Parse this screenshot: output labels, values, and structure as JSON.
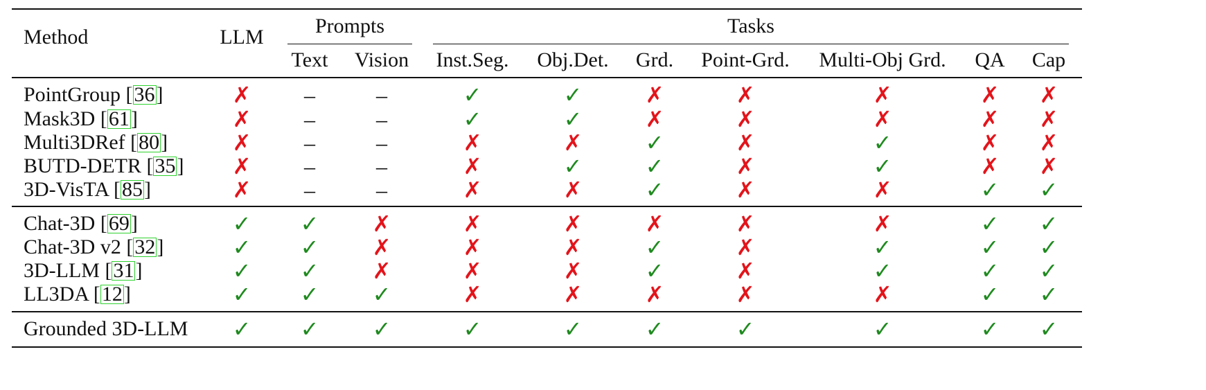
{
  "table": {
    "headers": {
      "method": "Method",
      "llm": "LLM",
      "prompts": "Prompts",
      "tasks": "Tasks",
      "prompt_cols": [
        "Text",
        "Vision"
      ],
      "task_cols": [
        "Inst.Seg.",
        "Obj.Det.",
        "Grd.",
        "Point-Grd.",
        "Multi-Obj Grd.",
        "QA",
        "Cap"
      ]
    },
    "marks": {
      "check": "✓",
      "cross": "✗",
      "dash": "–"
    },
    "groups": [
      [
        {
          "name": "PointGroup [",
          "cite": "36",
          "close": "]",
          "values": [
            "cross",
            "dash",
            "dash",
            "check",
            "check",
            "cross",
            "cross",
            "cross",
            "cross",
            "cross"
          ]
        },
        {
          "name": "Mask3D [",
          "cite": "61",
          "close": "]",
          "values": [
            "cross",
            "dash",
            "dash",
            "check",
            "check",
            "cross",
            "cross",
            "cross",
            "cross",
            "cross"
          ]
        },
        {
          "name": "Multi3DRef [",
          "cite": "80",
          "close": "]",
          "values": [
            "cross",
            "dash",
            "dash",
            "cross",
            "cross",
            "check",
            "cross",
            "check",
            "cross",
            "cross"
          ]
        },
        {
          "name": "BUTD-DETR [",
          "cite": "35",
          "close": "]",
          "values": [
            "cross",
            "dash",
            "dash",
            "cross",
            "check",
            "check",
            "cross",
            "check",
            "cross",
            "cross"
          ]
        },
        {
          "name": "3D-VisTA [",
          "cite": "85",
          "close": "]",
          "values": [
            "cross",
            "dash",
            "dash",
            "cross",
            "cross",
            "check",
            "cross",
            "cross",
            "check",
            "check"
          ]
        }
      ],
      [
        {
          "name": "Chat-3D [",
          "cite": "69",
          "close": "]",
          "values": [
            "check",
            "check",
            "cross",
            "cross",
            "cross",
            "cross",
            "cross",
            "cross",
            "check",
            "check"
          ]
        },
        {
          "name": "Chat-3D v2 [",
          "cite": "32",
          "close": "]",
          "values": [
            "check",
            "check",
            "cross",
            "cross",
            "cross",
            "check",
            "cross",
            "check",
            "check",
            "check"
          ]
        },
        {
          "name": "3D-LLM [",
          "cite": "31",
          "close": "]",
          "values": [
            "check",
            "check",
            "cross",
            "cross",
            "cross",
            "check",
            "cross",
            "check",
            "check",
            "check"
          ]
        },
        {
          "name": "LL3DA [",
          "cite": "12",
          "close": "]",
          "values": [
            "check",
            "check",
            "check",
            "cross",
            "cross",
            "cross",
            "cross",
            "cross",
            "check",
            "check"
          ]
        }
      ],
      [
        {
          "name": "Grounded 3D-LLM",
          "cite": "",
          "close": "",
          "values": [
            "check",
            "check",
            "check",
            "check",
            "check",
            "check",
            "check",
            "check",
            "check",
            "check"
          ]
        }
      ]
    ]
  }
}
